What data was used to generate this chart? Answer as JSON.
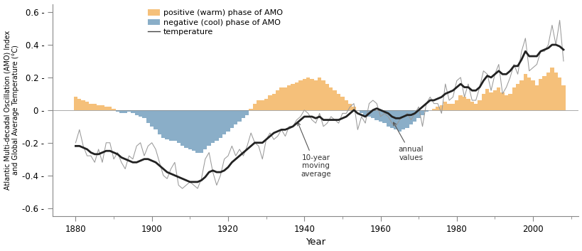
{
  "years": [
    1880,
    1881,
    1882,
    1883,
    1884,
    1885,
    1886,
    1887,
    1888,
    1889,
    1890,
    1891,
    1892,
    1893,
    1894,
    1895,
    1896,
    1897,
    1898,
    1899,
    1900,
    1901,
    1902,
    1903,
    1904,
    1905,
    1906,
    1907,
    1908,
    1909,
    1910,
    1911,
    1912,
    1913,
    1914,
    1915,
    1916,
    1917,
    1918,
    1919,
    1920,
    1921,
    1922,
    1923,
    1924,
    1925,
    1926,
    1927,
    1928,
    1929,
    1930,
    1931,
    1932,
    1933,
    1934,
    1935,
    1936,
    1937,
    1938,
    1939,
    1940,
    1941,
    1942,
    1943,
    1944,
    1945,
    1946,
    1947,
    1948,
    1949,
    1950,
    1951,
    1952,
    1953,
    1954,
    1955,
    1956,
    1957,
    1958,
    1959,
    1960,
    1961,
    1962,
    1963,
    1964,
    1965,
    1966,
    1967,
    1968,
    1969,
    1970,
    1971,
    1972,
    1973,
    1974,
    1975,
    1976,
    1977,
    1978,
    1979,
    1980,
    1981,
    1982,
    1983,
    1984,
    1985,
    1986,
    1987,
    1988,
    1989,
    1990,
    1991,
    1992,
    1993,
    1994,
    1995,
    1996,
    1997,
    1998,
    1999,
    2000,
    2001,
    2002,
    2003,
    2004,
    2005,
    2006,
    2007,
    2008
  ],
  "amo": [
    0.08,
    0.07,
    0.06,
    0.05,
    0.04,
    0.04,
    0.03,
    0.03,
    0.02,
    0.02,
    0.01,
    -0.01,
    -0.02,
    -0.02,
    -0.01,
    -0.02,
    -0.03,
    -0.04,
    -0.05,
    -0.08,
    -0.1,
    -0.12,
    -0.15,
    -0.17,
    -0.18,
    -0.19,
    -0.19,
    -0.2,
    -0.22,
    -0.23,
    -0.24,
    -0.25,
    -0.26,
    -0.26,
    -0.24,
    -0.22,
    -0.2,
    -0.19,
    -0.17,
    -0.15,
    -0.13,
    -0.11,
    -0.09,
    -0.07,
    -0.05,
    -0.03,
    0.01,
    0.04,
    0.06,
    0.06,
    0.07,
    0.09,
    0.1,
    0.12,
    0.14,
    0.14,
    0.15,
    0.16,
    0.17,
    0.18,
    0.19,
    0.2,
    0.19,
    0.18,
    0.2,
    0.18,
    0.16,
    0.14,
    0.12,
    0.1,
    0.08,
    0.06,
    0.04,
    0.02,
    0.0,
    -0.02,
    -0.04,
    -0.04,
    -0.05,
    -0.06,
    -0.07,
    -0.08,
    -0.1,
    -0.11,
    -0.12,
    -0.13,
    -0.12,
    -0.11,
    -0.09,
    -0.07,
    -0.05,
    -0.03,
    -0.01,
    0.0,
    0.01,
    0.02,
    0.03,
    0.05,
    0.04,
    0.04,
    0.06,
    0.09,
    0.08,
    0.07,
    0.05,
    0.04,
    0.06,
    0.1,
    0.13,
    0.11,
    0.12,
    0.14,
    0.11,
    0.09,
    0.1,
    0.14,
    0.16,
    0.18,
    0.22,
    0.2,
    0.18,
    0.15,
    0.19,
    0.21,
    0.23,
    0.26,
    0.23,
    0.2,
    0.15
  ],
  "temp_annual": [
    -0.2,
    -0.12,
    -0.22,
    -0.28,
    -0.28,
    -0.32,
    -0.24,
    -0.32,
    -0.2,
    -0.2,
    -0.3,
    -0.26,
    -0.32,
    -0.36,
    -0.28,
    -0.3,
    -0.22,
    -0.2,
    -0.28,
    -0.22,
    -0.2,
    -0.24,
    -0.32,
    -0.4,
    -0.42,
    -0.36,
    -0.32,
    -0.46,
    -0.48,
    -0.46,
    -0.44,
    -0.46,
    -0.48,
    -0.42,
    -0.3,
    -0.26,
    -0.38,
    -0.46,
    -0.4,
    -0.3,
    -0.28,
    -0.22,
    -0.28,
    -0.24,
    -0.28,
    -0.22,
    -0.14,
    -0.2,
    -0.22,
    -0.3,
    -0.18,
    -0.14,
    -0.18,
    -0.16,
    -0.12,
    -0.16,
    -0.1,
    -0.1,
    -0.06,
    -0.04,
    0.0,
    -0.02,
    -0.06,
    -0.08,
    -0.02,
    -0.1,
    -0.08,
    -0.04,
    -0.06,
    -0.08,
    -0.02,
    -0.02,
    0.02,
    0.04,
    -0.12,
    -0.04,
    -0.08,
    0.04,
    0.06,
    0.04,
    -0.04,
    -0.02,
    -0.04,
    -0.08,
    -0.1,
    -0.06,
    -0.04,
    -0.02,
    -0.06,
    -0.02,
    0.02,
    -0.1,
    0.04,
    0.08,
    0.04,
    0.04,
    -0.02,
    0.16,
    0.06,
    0.08,
    0.18,
    0.2,
    0.08,
    0.16,
    0.06,
    0.06,
    0.14,
    0.24,
    0.22,
    0.12,
    0.22,
    0.28,
    0.1,
    0.14,
    0.2,
    0.28,
    0.22,
    0.36,
    0.44,
    0.24,
    0.26,
    0.28,
    0.36,
    0.36,
    0.4,
    0.52,
    0.4,
    0.55,
    0.3
  ],
  "temp_smooth": [
    -0.22,
    -0.22,
    -0.23,
    -0.24,
    -0.26,
    -0.27,
    -0.27,
    -0.26,
    -0.25,
    -0.25,
    -0.26,
    -0.27,
    -0.29,
    -0.3,
    -0.31,
    -0.32,
    -0.32,
    -0.31,
    -0.3,
    -0.3,
    -0.31,
    -0.32,
    -0.34,
    -0.36,
    -0.38,
    -0.39,
    -0.4,
    -0.41,
    -0.42,
    -0.43,
    -0.44,
    -0.44,
    -0.44,
    -0.43,
    -0.41,
    -0.38,
    -0.37,
    -0.38,
    -0.38,
    -0.37,
    -0.35,
    -0.32,
    -0.3,
    -0.28,
    -0.26,
    -0.24,
    -0.22,
    -0.2,
    -0.2,
    -0.2,
    -0.18,
    -0.16,
    -0.14,
    -0.13,
    -0.12,
    -0.12,
    -0.11,
    -0.1,
    -0.08,
    -0.06,
    -0.04,
    -0.04,
    -0.04,
    -0.05,
    -0.04,
    -0.06,
    -0.06,
    -0.06,
    -0.06,
    -0.06,
    -0.05,
    -0.04,
    -0.02,
    0.0,
    -0.02,
    -0.03,
    -0.04,
    -0.02,
    0.0,
    0.01,
    0.0,
    -0.01,
    -0.02,
    -0.04,
    -0.05,
    -0.05,
    -0.04,
    -0.03,
    -0.03,
    -0.02,
    0.0,
    0.02,
    0.04,
    0.06,
    0.06,
    0.07,
    0.08,
    0.1,
    0.11,
    0.12,
    0.14,
    0.16,
    0.14,
    0.14,
    0.12,
    0.12,
    0.14,
    0.18,
    0.21,
    0.2,
    0.22,
    0.24,
    0.22,
    0.22,
    0.24,
    0.27,
    0.27,
    0.31,
    0.36,
    0.33,
    0.33,
    0.33,
    0.36,
    0.37,
    0.38,
    0.4,
    0.4,
    0.39,
    0.37
  ],
  "color_orange": "#F5C07A",
  "color_blue": "#8AAEC8",
  "color_line_annual": "#999999",
  "color_line_smooth": "#222222",
  "ylim": [
    -0.65,
    0.65
  ],
  "yticks": [
    -0.6,
    -0.4,
    -0.2,
    0.0,
    0.2,
    0.4,
    0.6
  ],
  "xticks": [
    1880,
    1900,
    1920,
    1940,
    1960,
    1980,
    2000
  ],
  "xlabel": "Year",
  "ylabel": "Atlantic Multi-decadal Oscillation (AMO) Index\nand Global Average Temperature (°C)",
  "legend_labels": [
    "positive (warm) phase of AMO",
    "negative (cool) phase of AMO",
    "temperature"
  ],
  "annotation_moving_avg": "10-year\nmoving\naverage",
  "annotation_annual": "annual\nvalues",
  "bar_width": 1.0
}
